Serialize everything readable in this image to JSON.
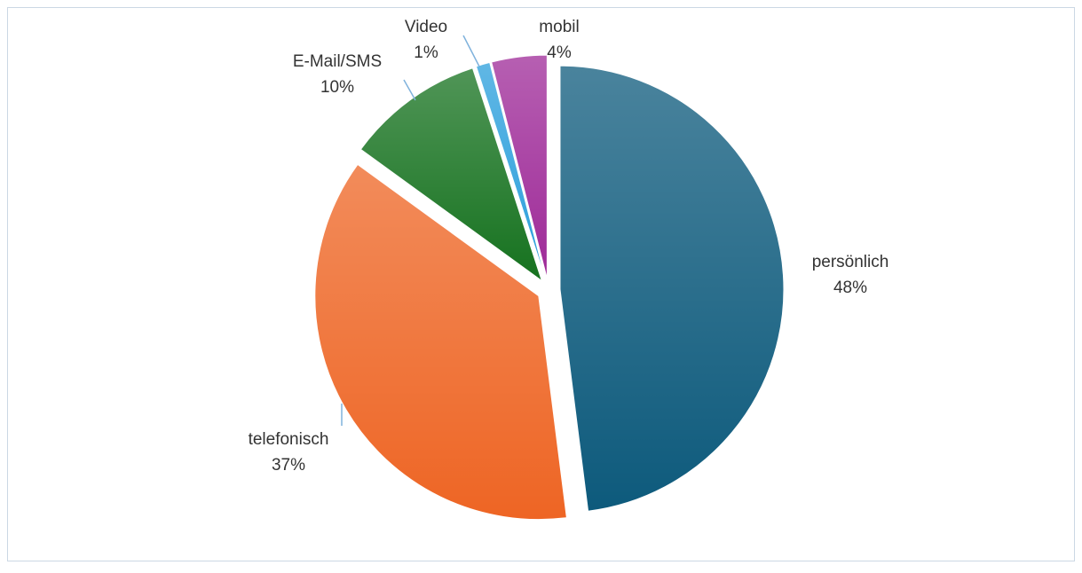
{
  "chart_data": {
    "type": "pie",
    "categories": [
      "persönlich",
      "telefonisch",
      "E-Mail/SMS",
      "Video",
      "mobil"
    ],
    "values": [
      48,
      37,
      10,
      1,
      4
    ],
    "value_labels": [
      "48%",
      "37%",
      "10%",
      "1%",
      "4%"
    ],
    "colors": [
      "#0d5a7c",
      "#ee6524",
      "#16721f",
      "#2b9fdc",
      "#9e2a98"
    ]
  }
}
